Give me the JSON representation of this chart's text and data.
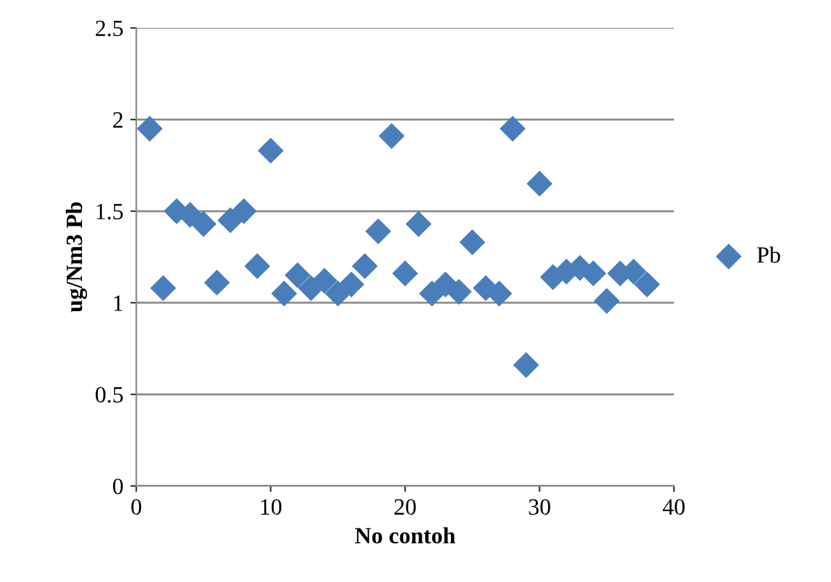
{
  "chart_data": {
    "type": "scatter",
    "xlabel": "No contoh",
    "ylabel": "ug/Nm3 Pb",
    "xlim": [
      0,
      40
    ],
    "xticks": [
      0,
      10,
      20,
      30,
      40
    ],
    "ylim": [
      0,
      2.5
    ],
    "yticks": [
      0,
      0.5,
      1,
      1.5,
      2,
      2.5
    ],
    "grid": "y",
    "legend": "right",
    "marker": "diamond",
    "series": [
      {
        "name": "Pb",
        "color": "#4a7ebb",
        "x": [
          1,
          2,
          3,
          4,
          5,
          6,
          7,
          8,
          9,
          10,
          11,
          12,
          13,
          14,
          15,
          16,
          17,
          18,
          19,
          20,
          21,
          22,
          23,
          24,
          25,
          26,
          27,
          28,
          29,
          30,
          31,
          32,
          33,
          34,
          35,
          36,
          37,
          38
        ],
        "values": [
          1.95,
          1.08,
          1.5,
          1.48,
          1.43,
          1.11,
          1.45,
          1.5,
          1.2,
          1.83,
          1.05,
          1.15,
          1.08,
          1.12,
          1.05,
          1.1,
          1.2,
          1.39,
          1.91,
          1.16,
          1.43,
          1.05,
          1.1,
          1.06,
          1.33,
          1.08,
          1.05,
          1.95,
          0.66,
          1.65,
          1.14,
          1.17,
          1.19,
          1.16,
          1.01,
          1.16,
          1.17,
          1.1
        ]
      }
    ]
  }
}
